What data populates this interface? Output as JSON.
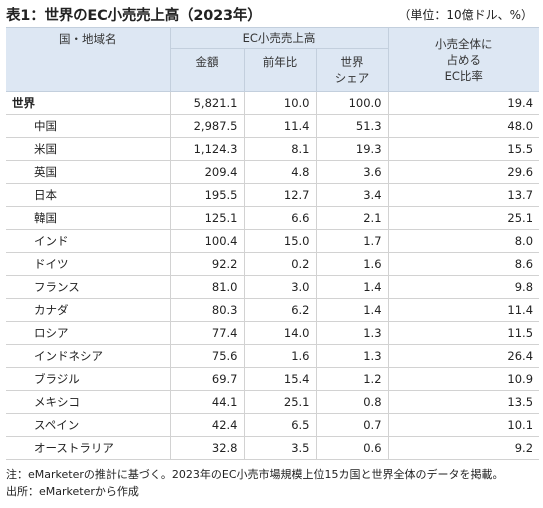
{
  "title": "表1：世界のEC小売売上高（2023年）",
  "unit": "（単位：10億ドル、%）",
  "headers": {
    "country": "国・地域名",
    "ec_sales": "EC小売売上高",
    "amount": "金額",
    "yoy": "前年比",
    "world_share_line1": "世界",
    "world_share_line2": "シェア",
    "ec_ratio_line1": "小売全体に",
    "ec_ratio_line2": "占める",
    "ec_ratio_line3": "EC比率"
  },
  "rows": [
    {
      "name": "世界",
      "amount": "5,821.1",
      "yoy": "10.0",
      "share": "100.0",
      "ratio": "19.4"
    },
    {
      "name": "中国",
      "amount": "2,987.5",
      "yoy": "11.4",
      "share": "51.3",
      "ratio": "48.0"
    },
    {
      "name": "米国",
      "amount": "1,124.3",
      "yoy": "8.1",
      "share": "19.3",
      "ratio": "15.5"
    },
    {
      "name": "英国",
      "amount": "209.4",
      "yoy": "4.8",
      "share": "3.6",
      "ratio": "29.6"
    },
    {
      "name": "日本",
      "amount": "195.5",
      "yoy": "12.7",
      "share": "3.4",
      "ratio": "13.7"
    },
    {
      "name": "韓国",
      "amount": "125.1",
      "yoy": "6.6",
      "share": "2.1",
      "ratio": "25.1"
    },
    {
      "name": "インド",
      "amount": "100.4",
      "yoy": "15.0",
      "share": "1.7",
      "ratio": "8.0"
    },
    {
      "name": "ドイツ",
      "amount": "92.2",
      "yoy": "0.2",
      "share": "1.6",
      "ratio": "8.6"
    },
    {
      "name": "フランス",
      "amount": "81.0",
      "yoy": "3.0",
      "share": "1.4",
      "ratio": "9.8"
    },
    {
      "name": "カナダ",
      "amount": "80.3",
      "yoy": "6.2",
      "share": "1.4",
      "ratio": "11.4"
    },
    {
      "name": "ロシア",
      "amount": "77.4",
      "yoy": "14.0",
      "share": "1.3",
      "ratio": "11.5"
    },
    {
      "name": "インドネシア",
      "amount": "75.6",
      "yoy": "1.6",
      "share": "1.3",
      "ratio": "26.4"
    },
    {
      "name": "ブラジル",
      "amount": "69.7",
      "yoy": "15.4",
      "share": "1.2",
      "ratio": "10.9"
    },
    {
      "name": "メキシコ",
      "amount": "44.1",
      "yoy": "25.1",
      "share": "0.8",
      "ratio": "13.5"
    },
    {
      "name": "スペイン",
      "amount": "42.4",
      "yoy": "6.5",
      "share": "0.7",
      "ratio": "10.1"
    },
    {
      "name": "オーストラリア",
      "amount": "32.8",
      "yoy": "3.5",
      "share": "0.6",
      "ratio": "9.2"
    }
  ],
  "notes": {
    "note": "注：eMarketerの推計に基づく。2023年のEC小売市場規模上位15カ国と世界全体のデータを掲載。",
    "source": "出所：eMarketerから作成"
  }
}
